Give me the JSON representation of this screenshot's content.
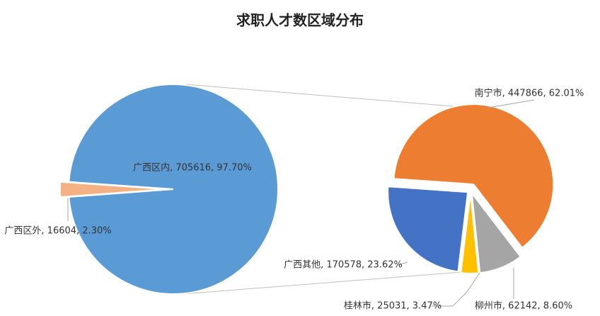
{
  "chart_data": [
    {
      "type": "pie",
      "title": "求职人才数区域分布",
      "categories": [
        "广西区内",
        "广西区外"
      ],
      "values": [
        705616,
        16604
      ],
      "value_labels": [
        "广西区内, 705616, 97.70%",
        "广西区外, 16604, 2.30%"
      ],
      "colors": [
        "#5B9BD5",
        "#F4B183"
      ]
    },
    {
      "type": "pie",
      "categories": [
        "南宁市",
        "柳州市",
        "桂林市",
        "广西其他"
      ],
      "values": [
        447866,
        62142,
        25031,
        170578
      ],
      "value_labels": [
        "南宁市, 447866, 62.01%",
        "柳州市, 62142, 8.60%",
        "桂林市, 25031, 3.47%",
        "广西其他, 170578, 23.62%"
      ],
      "colors": [
        "#ED7D31",
        "#A5A5A5",
        "#FFC000",
        "#4472C4"
      ]
    }
  ]
}
